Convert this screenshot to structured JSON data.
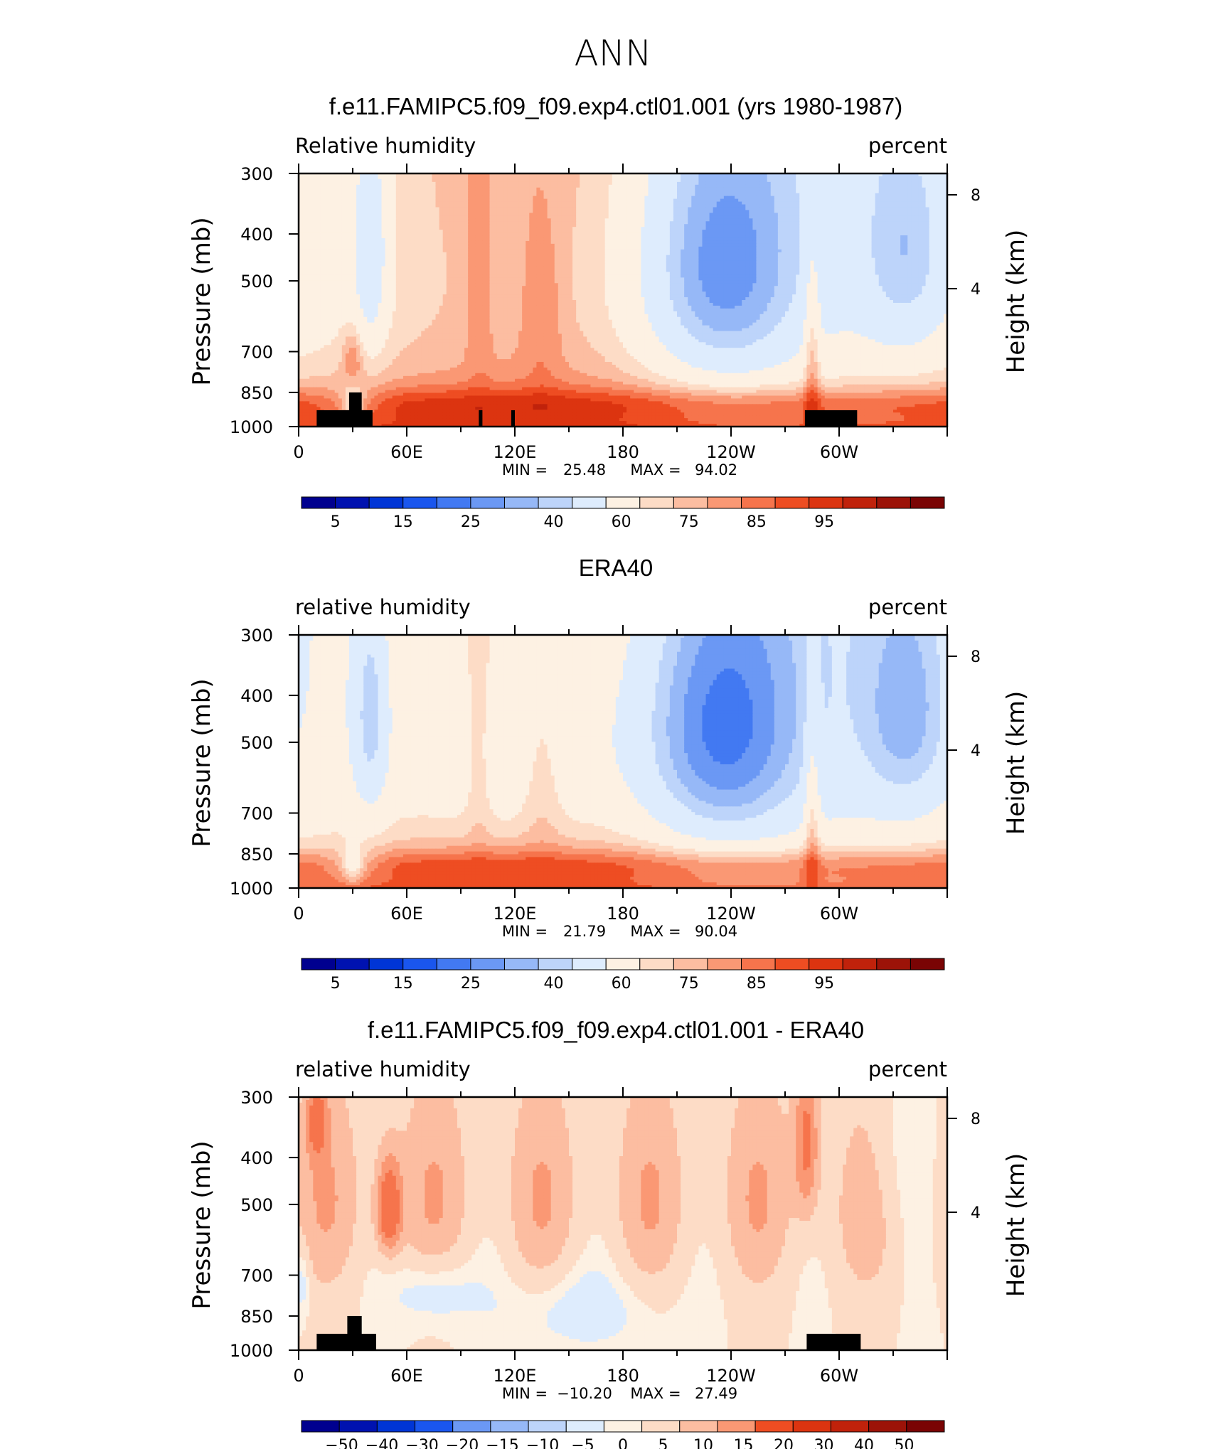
{
  "figure": {
    "season_title": "ANN"
  },
  "colors": {
    "abs": [
      "#00008f",
      "#0012b0",
      "#0035d6",
      "#1a56ee",
      "#4279f2",
      "#6b98f4",
      "#96b8f7",
      "#bdd4fa",
      "#deecfd",
      "#fdf1e3",
      "#fddcc6",
      "#fcbda1",
      "#fa9874",
      "#f6744c",
      "#ee4d22",
      "#dc3410",
      "#c0220b",
      "#9c1308",
      "#7a0404"
    ],
    "diff": [
      "#00008f",
      "#0012b0",
      "#0035d6",
      "#1a56ee",
      "#4279f2",
      "#6b98f4",
      "#96b8f7",
      "#bdd4fa",
      "#deecfd",
      "#fdf1e3",
      "#fddcc6",
      "#fcbda1",
      "#fa9874",
      "#f6744c",
      "#ee4d22",
      "#dc3410",
      "#c0220b",
      "#9c1308",
      "#7a0404"
    ],
    "land": "#000000"
  },
  "chart_data": [
    {
      "type": "heatmap",
      "title": "f.e11.FAMIPC5.f09_f09.exp4.ctl01.001 (yrs 1980-1987)",
      "left_string": "Relative humidity",
      "right_string": "percent",
      "ylabel": "Pressure (mb)",
      "ylabel_right": "Height (km)",
      "x_ticks": [
        "0",
        "60E",
        "120E",
        "180",
        "120W",
        "60W"
      ],
      "y_ticks": [
        "300",
        "400",
        "500",
        "700",
        "850",
        "1000"
      ],
      "height_ticks": [
        "8",
        "4"
      ],
      "xlim": [
        0,
        360
      ],
      "ylim": [
        1000,
        300
      ],
      "stats": {
        "min_label": "MIN =",
        "min": "25.48",
        "max_label": "MAX =",
        "max": "94.02"
      },
      "colorbar_labels": [
        "5",
        "15",
        "25",
        "40",
        "60",
        "75",
        "85",
        "95"
      ],
      "contour_levels": [
        5,
        10,
        15,
        20,
        25,
        30,
        35,
        40,
        50,
        60,
        65,
        70,
        75,
        80,
        85,
        90,
        95,
        100
      ],
      "field": "model",
      "land_blocks": [
        {
          "lon_start": 10,
          "lon_end": 41,
          "p_top": 925
        },
        {
          "lon_start": 28,
          "lon_end": 35,
          "p_top": 850
        },
        {
          "lon_start": 100,
          "lon_end": 102,
          "p_top": 925
        },
        {
          "lon_start": 118,
          "lon_end": 120,
          "p_top": 925
        },
        {
          "lon_start": 281,
          "lon_end": 310,
          "p_top": 925
        }
      ]
    },
    {
      "type": "heatmap",
      "title": "ERA40",
      "left_string": "relative humidity",
      "right_string": "percent",
      "ylabel": "Pressure (mb)",
      "ylabel_right": "Height (km)",
      "x_ticks": [
        "0",
        "60E",
        "120E",
        "180",
        "120W",
        "60W"
      ],
      "y_ticks": [
        "300",
        "400",
        "500",
        "700",
        "850",
        "1000"
      ],
      "height_ticks": [
        "8",
        "4"
      ],
      "xlim": [
        0,
        360
      ],
      "ylim": [
        1000,
        300
      ],
      "stats": {
        "min_label": "MIN =",
        "min": "21.79",
        "max_label": "MAX =",
        "max": "90.04"
      },
      "colorbar_labels": [
        "5",
        "15",
        "25",
        "40",
        "60",
        "75",
        "85",
        "95"
      ],
      "contour_levels": [
        5,
        10,
        15,
        20,
        25,
        30,
        35,
        40,
        50,
        60,
        65,
        70,
        75,
        80,
        85,
        90,
        95,
        100
      ],
      "field": "obs",
      "land_blocks": []
    },
    {
      "type": "heatmap",
      "title": "f.e11.FAMIPC5.f09_f09.exp4.ctl01.001 - ERA40",
      "left_string": "relative humidity",
      "right_string": "percent",
      "ylabel": "Pressure (mb)",
      "ylabel_right": "Height (km)",
      "x_ticks": [
        "0",
        "60E",
        "120E",
        "180",
        "120W",
        "60W"
      ],
      "y_ticks": [
        "300",
        "400",
        "500",
        "700",
        "850",
        "1000"
      ],
      "height_ticks": [
        "8",
        "4"
      ],
      "xlim": [
        0,
        360
      ],
      "ylim": [
        1000,
        300
      ],
      "stats": {
        "min_label": "MIN =",
        "min": "−10.20",
        "max_label": "MAX =",
        "max": "27.49"
      },
      "colorbar_labels": [
        "−50",
        "−40",
        "−30",
        "−20",
        "−15",
        "−10",
        "−5",
        "0",
        "5",
        "10",
        "15",
        "20",
        "30",
        "40",
        "50"
      ],
      "contour_levels": [
        -50,
        -40,
        -30,
        -20,
        -15,
        -10,
        -5,
        -2,
        2,
        5,
        10,
        15,
        20,
        30,
        40,
        50
      ],
      "field": "diff",
      "land_blocks": [
        {
          "lon_start": 10,
          "lon_end": 43,
          "p_top": 925
        },
        {
          "lon_start": 27,
          "lon_end": 35,
          "p_top": 850
        },
        {
          "lon_start": 282,
          "lon_end": 312,
          "p_top": 925
        }
      ]
    }
  ]
}
